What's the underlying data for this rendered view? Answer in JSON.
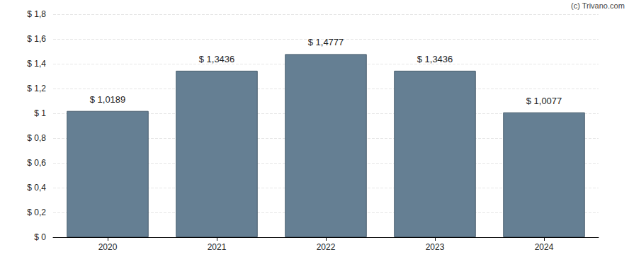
{
  "chart_data": {
    "type": "bar",
    "annotation": "(c) Trivano.com",
    "categories": [
      "2020",
      "2021",
      "2022",
      "2023",
      "2024"
    ],
    "values": [
      1.0189,
      1.3436,
      1.4777,
      1.3436,
      1.0077
    ],
    "value_labels": [
      "$ 1,0189",
      "$ 1,3436",
      "$ 1,4777",
      "$ 1,3436",
      "$ 1,0077"
    ],
    "data_labels": true,
    "color": "#657f93",
    "ylim": [
      0,
      1.8
    ],
    "yticks": [
      {
        "value": 0,
        "label": "$ 0"
      },
      {
        "value": 0.2,
        "label": "$ 0,2"
      },
      {
        "value": 0.4,
        "label": "$ 0,4"
      },
      {
        "value": 0.6,
        "label": "$ 0,6"
      },
      {
        "value": 0.8,
        "label": "$ 0,8"
      },
      {
        "value": 1,
        "label": "$ 1"
      },
      {
        "value": 1.2,
        "label": "$ 1,2"
      },
      {
        "value": 1.4,
        "label": "$ 1,4"
      },
      {
        "value": 1.6,
        "label": "$ 1,6"
      },
      {
        "value": 1.8,
        "label": "$ 1,8"
      }
    ],
    "grid": true
  }
}
